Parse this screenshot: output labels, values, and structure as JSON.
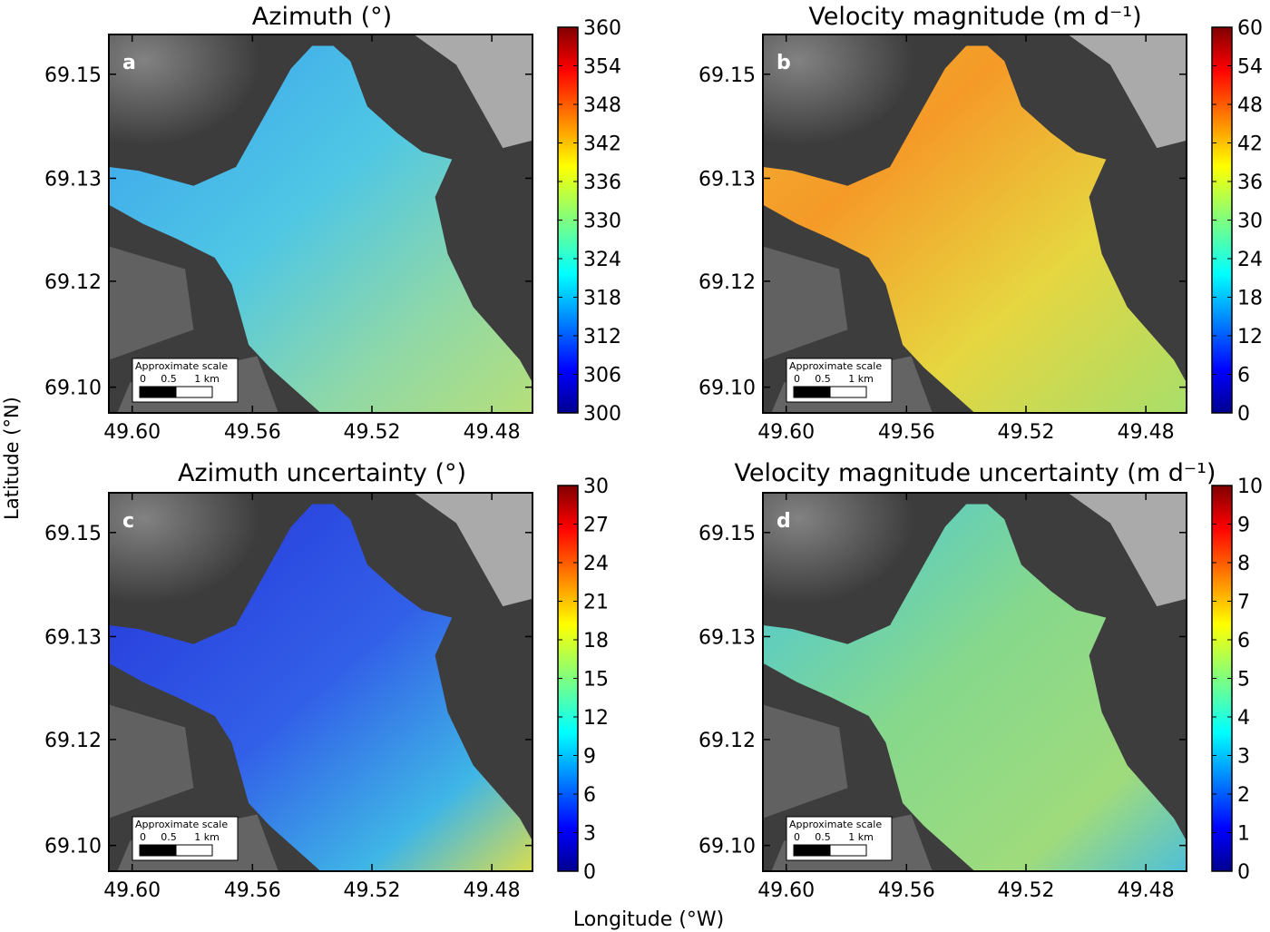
{
  "figure": {
    "y_axis_label": "Latitude (°N)",
    "x_axis_label": "Longitude (°W)",
    "scalebar": {
      "title": "Approximate scale",
      "ticks": [
        "0",
        "0.5",
        "1 km"
      ]
    }
  },
  "chart_data": [
    {
      "type": "heatmap",
      "panel_label": "a",
      "title": "Azimuth (°)",
      "xlabel": "Longitude (°W)",
      "ylabel": "Latitude (°N)",
      "x_ticks": [
        "49.60",
        "49.56",
        "49.52",
        "49.48"
      ],
      "y_ticks": [
        "69.15",
        "69.13",
        "69.12",
        "69.10"
      ],
      "xlim": [
        49.6,
        49.47
      ],
      "ylim": [
        69.1,
        69.155
      ],
      "colorbar_ticks": [
        "360",
        "354",
        "348",
        "342",
        "336",
        "330",
        "324",
        "318",
        "312",
        "306",
        "300"
      ],
      "colorbar_range": [
        300,
        360
      ],
      "colormap": "jet"
    },
    {
      "type": "heatmap",
      "panel_label": "b",
      "title": "Velocity magnitude (m d⁻¹)",
      "xlabel": "Longitude (°W)",
      "ylabel": "Latitude (°N)",
      "x_ticks": [
        "49.60",
        "49.56",
        "49.52",
        "49.48"
      ],
      "y_ticks": [
        "69.15",
        "69.13",
        "69.12",
        "69.10"
      ],
      "xlim": [
        49.6,
        49.47
      ],
      "ylim": [
        69.1,
        69.155
      ],
      "colorbar_ticks": [
        "60",
        "54",
        "48",
        "42",
        "36",
        "30",
        "24",
        "18",
        "12",
        "6",
        "0"
      ],
      "colorbar_range": [
        0,
        60
      ],
      "colormap": "jet"
    },
    {
      "type": "heatmap",
      "panel_label": "c",
      "title": "Azimuth uncertainty (°)",
      "xlabel": "Longitude (°W)",
      "ylabel": "Latitude (°N)",
      "x_ticks": [
        "49.60",
        "49.56",
        "49.52",
        "49.48"
      ],
      "y_ticks": [
        "69.15",
        "69.13",
        "69.12",
        "69.10"
      ],
      "xlim": [
        49.6,
        49.47
      ],
      "ylim": [
        69.1,
        69.155
      ],
      "colorbar_ticks": [
        "30",
        "27",
        "24",
        "21",
        "18",
        "15",
        "12",
        "9",
        "6",
        "3",
        "0"
      ],
      "colorbar_range": [
        0,
        30
      ],
      "colormap": "jet"
    },
    {
      "type": "heatmap",
      "panel_label": "d",
      "title": "Velocity magnitude uncertainty (m d⁻¹)",
      "xlabel": "Longitude (°W)",
      "ylabel": "Latitude (°N)",
      "x_ticks": [
        "49.60",
        "49.56",
        "49.52",
        "49.48"
      ],
      "y_ticks": [
        "69.15",
        "69.13",
        "69.12",
        "69.10"
      ],
      "xlim": [
        49.6,
        49.47
      ],
      "ylim": [
        69.1,
        69.155
      ],
      "colorbar_ticks": [
        "10",
        "9",
        "8",
        "7",
        "6",
        "5",
        "4",
        "3",
        "2",
        "1",
        "0"
      ],
      "colorbar_range": [
        0,
        10
      ],
      "colormap": "jet"
    }
  ]
}
